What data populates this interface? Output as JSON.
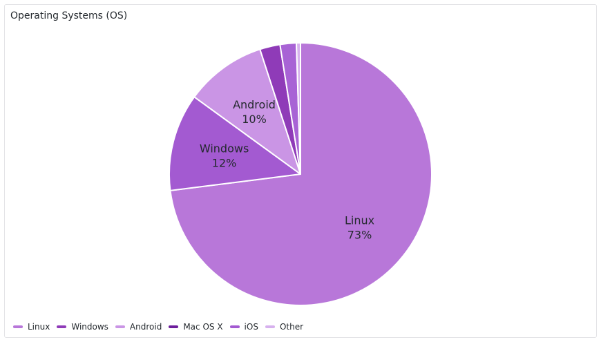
{
  "panel": {
    "title": "Operating Systems (OS)"
  },
  "chart_data": {
    "type": "pie",
    "title": "Operating Systems (OS)",
    "start_angle_deg": 0,
    "slices": [
      {
        "name": "Linux",
        "value": 73,
        "label": "73%",
        "color": "#b877d9",
        "show_label": true
      },
      {
        "name": "Windows",
        "value": 12,
        "label": "12%",
        "color": "#a35ad1",
        "show_label": true
      },
      {
        "name": "Android",
        "value": 10,
        "label": "10%",
        "color": "#ca95e5",
        "show_label": true
      },
      {
        "name": "Mac OS X",
        "value": 2.5,
        "label": "",
        "color": "#8f3bb8",
        "show_label": false
      },
      {
        "name": "iOS",
        "value": 2,
        "label": "",
        "color": "#a863d5",
        "show_label": false
      },
      {
        "name": "Other",
        "value": 0.5,
        "label": "",
        "color": "#d7b1ee",
        "show_label": false
      }
    ],
    "legend_position": "bottom-left"
  },
  "legend": {
    "items": [
      {
        "label": "Linux",
        "color": "#b877d9"
      },
      {
        "label": "Windows",
        "color": "#8f3bb8"
      },
      {
        "label": "Android",
        "color": "#ca95e5"
      },
      {
        "label": "Mac OS X",
        "color": "#6d1f9c"
      },
      {
        "label": "iOS",
        "color": "#a35ad1"
      },
      {
        "label": "Other",
        "color": "#d7b1ee"
      }
    ]
  }
}
